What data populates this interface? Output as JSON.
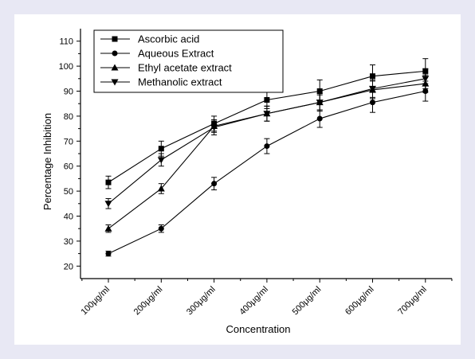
{
  "chart_data": {
    "type": "line",
    "title": "",
    "xlabel": "Concentration",
    "ylabel": "Percentage Inhibition",
    "categories": [
      "100μg/ml",
      "200μg/ml",
      "300μg/ml",
      "400μg/ml",
      "500μg/ml",
      "600μg/ml",
      "700μg/ml"
    ],
    "ylim": [
      15,
      115
    ],
    "yticks": [
      20,
      30,
      40,
      50,
      60,
      70,
      80,
      90,
      100,
      110
    ],
    "grid": false,
    "legend_position": "top-left",
    "series": [
      {
        "name": "Ascorbic acid",
        "marker": "square",
        "values": [
          53.5,
          67,
          77,
          86.5,
          90,
          96,
          98
        ],
        "errors": [
          2.5,
          3,
          3,
          3.5,
          4.5,
          4.5,
          5
        ]
      },
      {
        "name": "Aqueous Extract",
        "marker": "circle",
        "values": [
          25,
          35,
          53,
          68,
          79,
          85.5,
          90
        ],
        "errors": [
          1,
          1.5,
          2.5,
          3,
          3.5,
          4,
          4
        ]
      },
      {
        "name": "Ethyl acetate extract",
        "marker": "triangle-up",
        "values": [
          35,
          51,
          76,
          81,
          85.5,
          90.5,
          93
        ],
        "errors": [
          1.5,
          2,
          2.5,
          3,
          3,
          3.5,
          3.5
        ]
      },
      {
        "name": "Methanolic extract",
        "marker": "triangle-down",
        "values": [
          45,
          62.5,
          75.5,
          81,
          85.5,
          91,
          95
        ],
        "errors": [
          2,
          2.5,
          3,
          3,
          3.5,
          3.5,
          4
        ]
      }
    ]
  }
}
